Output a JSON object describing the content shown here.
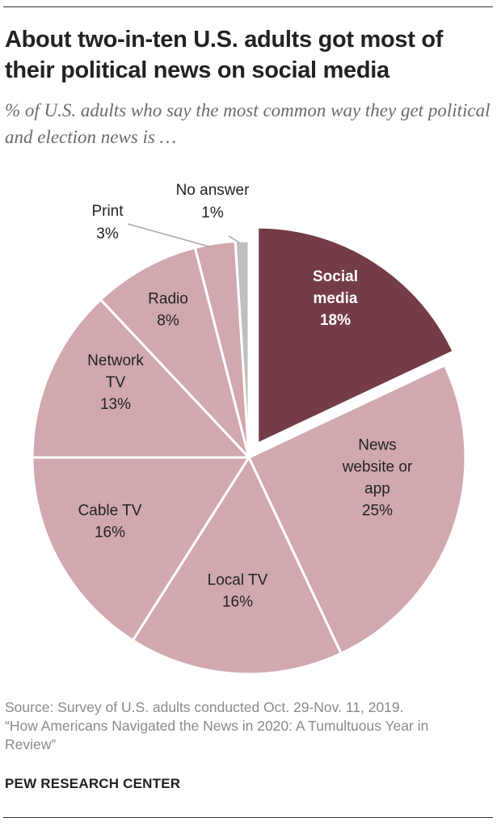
{
  "header": {
    "title": "About two-in-ten U.S. adults got most of their political news on social media",
    "subtitle": "% of U.S. adults who say the most common way they get political and election news is …"
  },
  "chart_data": {
    "type": "pie",
    "slices": [
      {
        "label": [
          "Social",
          "media"
        ],
        "value_label": "18%",
        "value": 18,
        "color": "#743c46",
        "exploded": true
      },
      {
        "label": [
          "News",
          "website or",
          "app"
        ],
        "value_label": "25%",
        "value": 25,
        "color": "#d1a8ae"
      },
      {
        "label": [
          "Local TV"
        ],
        "value_label": "16%",
        "value": 16,
        "color": "#d1a8ae"
      },
      {
        "label": [
          "Cable TV"
        ],
        "value_label": "16%",
        "value": 16,
        "color": "#d1a8ae"
      },
      {
        "label": [
          "Network",
          "TV"
        ],
        "value_label": "13%",
        "value": 13,
        "color": "#d1a8ae"
      },
      {
        "label": [
          "Radio"
        ],
        "value_label": "8%",
        "value": 8,
        "color": "#d1a8ae"
      },
      {
        "label": [
          "Print"
        ],
        "value_label": "3%",
        "value": 3,
        "color": "#d1a8ae",
        "outside": true
      },
      {
        "label": [
          "No answer"
        ],
        "value_label": "1%",
        "value": 1,
        "color": "#bfbfbf",
        "outside": true
      }
    ]
  },
  "footer": {
    "source_lines": [
      "Source: Survey of U.S. adults conducted Oct. 29-Nov. 11, 2019.",
      "“How Americans Navigated the News in 2020: A Tumultuous Year in",
      "Review”"
    ],
    "brand": "PEW RESEARCH CENTER"
  }
}
